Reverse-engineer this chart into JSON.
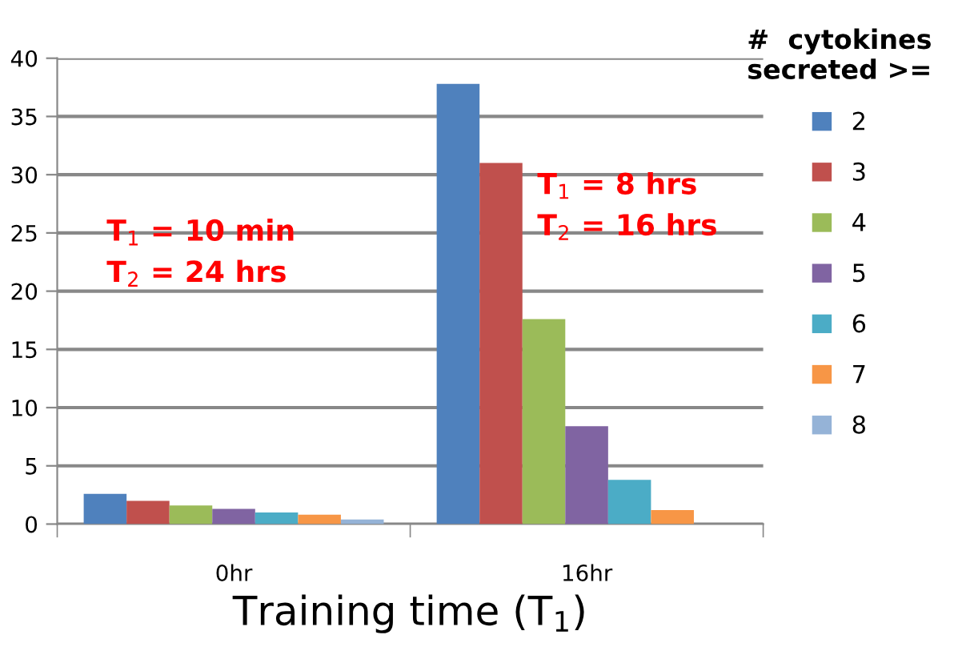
{
  "chart_data": {
    "type": "bar",
    "xlabel": "Training time (T$_{1}$)",
    "legend_title": "#  cytokines\nsecreted >=",
    "categories": [
      "0hr",
      "16hr"
    ],
    "series": [
      {
        "name": "2",
        "color": "#4f81bd",
        "values": [
          2.6,
          37.8
        ]
      },
      {
        "name": "3",
        "color": "#c0504d",
        "values": [
          2.0,
          31.0
        ]
      },
      {
        "name": "4",
        "color": "#9bbb59",
        "values": [
          1.6,
          17.6
        ]
      },
      {
        "name": "5",
        "color": "#8064a2",
        "values": [
          1.3,
          8.4
        ]
      },
      {
        "name": "6",
        "color": "#4bacc6",
        "values": [
          1.0,
          3.8
        ]
      },
      {
        "name": "7",
        "color": "#f79646",
        "values": [
          0.8,
          1.2
        ]
      },
      {
        "name": "8",
        "color": "#95b3d7",
        "values": [
          0.4,
          0
        ]
      }
    ],
    "ylim": [
      0,
      40
    ],
    "yticks": [
      0,
      5,
      10,
      15,
      20,
      25,
      30,
      35,
      40
    ],
    "grid": "y",
    "legend": "right",
    "annotations": [
      "T$_{1}$ = 10 min\nT$_{2}$ = 24 hrs",
      "T$_{1}$ = 8 hrs\nT$_{2}$ = 16 hrs"
    ]
  }
}
